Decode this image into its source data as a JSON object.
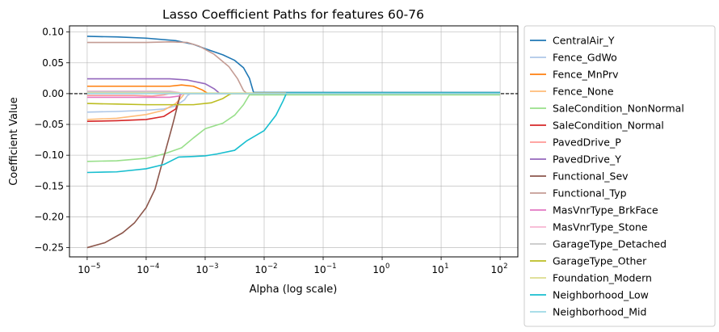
{
  "chart_data": {
    "type": "line",
    "title": "Lasso Coefficient Paths for features 60-76",
    "xlabel": "Alpha (log scale)",
    "ylabel": "Coefficient Value",
    "xscale": "log",
    "xlim_log10": [
      -5.3,
      2.3
    ],
    "ylim": [
      -0.265,
      0.11
    ],
    "xticks": [
      {
        "exp": -5,
        "label": "10",
        "sup": "−5"
      },
      {
        "exp": -4,
        "label": "10",
        "sup": "−4"
      },
      {
        "exp": -3,
        "label": "10",
        "sup": "−3"
      },
      {
        "exp": -2,
        "label": "10",
        "sup": "−2"
      },
      {
        "exp": -1,
        "label": "10",
        "sup": "−1"
      },
      {
        "exp": 0,
        "label": "10",
        "sup": "0"
      },
      {
        "exp": 1,
        "label": "10",
        "sup": "1"
      },
      {
        "exp": 2,
        "label": "10",
        "sup": "2"
      }
    ],
    "yticks": [
      {
        "v": 0.1,
        "label": "0.10"
      },
      {
        "v": 0.05,
        "label": "0.05"
      },
      {
        "v": 0.0,
        "label": "0.00"
      },
      {
        "v": -0.05,
        "label": "−0.05"
      },
      {
        "v": -0.1,
        "label": "−0.10"
      },
      {
        "v": -0.15,
        "label": "−0.15"
      },
      {
        "v": -0.2,
        "label": "−0.20"
      },
      {
        "v": -0.25,
        "label": "−0.25"
      }
    ],
    "grid": true,
    "zero_line": "dashed black",
    "legend_position": "outside-right",
    "series": [
      {
        "name": "CentralAir_Y",
        "color": "#1f77b4",
        "points": [
          [
            -5,
            0.093
          ],
          [
            -4.5,
            0.092
          ],
          [
            -4,
            0.09
          ],
          [
            -3.5,
            0.086
          ],
          [
            -3.2,
            0.08
          ],
          [
            -3,
            0.073
          ],
          [
            -2.7,
            0.063
          ],
          [
            -2.5,
            0.054
          ],
          [
            -2.35,
            0.042
          ],
          [
            -2.25,
            0.025
          ],
          [
            -2.18,
            0.002
          ],
          [
            2,
            0.002
          ]
        ]
      },
      {
        "name": "Fence_GdWo",
        "color": "#aec7e8",
        "points": [
          [
            -5,
            -0.03
          ],
          [
            -4.5,
            -0.029
          ],
          [
            -4,
            -0.027
          ],
          [
            -3.7,
            -0.025
          ],
          [
            -3.5,
            -0.02
          ],
          [
            -3.35,
            -0.01
          ],
          [
            -3.3,
            -0.003
          ],
          [
            -3.25,
            0.0
          ],
          [
            2,
            0.0
          ]
        ]
      },
      {
        "name": "Fence_MnPrv",
        "color": "#ff7f0e",
        "points": [
          [
            -5,
            0.012
          ],
          [
            -4,
            0.012
          ],
          [
            -3.6,
            0.012
          ],
          [
            -3.4,
            0.014
          ],
          [
            -3.2,
            0.012
          ],
          [
            -3.05,
            0.006
          ],
          [
            -2.95,
            0.0
          ],
          [
            2,
            0.0
          ]
        ]
      },
      {
        "name": "Fence_None",
        "color": "#ffbb78",
        "points": [
          [
            -5,
            -0.042
          ],
          [
            -4.5,
            -0.04
          ],
          [
            -4,
            -0.034
          ],
          [
            -3.7,
            -0.027
          ],
          [
            -3.5,
            -0.016
          ],
          [
            -3.4,
            -0.006
          ],
          [
            -3.35,
            0.0
          ],
          [
            2,
            0.0
          ]
        ]
      },
      {
        "name": "SaleCondition_NonNormal",
        "color": "#98df8a",
        "points": [
          [
            -5,
            -0.11
          ],
          [
            -4.5,
            -0.109
          ],
          [
            -4,
            -0.105
          ],
          [
            -3.7,
            -0.098
          ],
          [
            -3.4,
            -0.088
          ],
          [
            -3.2,
            -0.072
          ],
          [
            -3,
            -0.057
          ],
          [
            -2.7,
            -0.048
          ],
          [
            -2.5,
            -0.035
          ],
          [
            -2.35,
            -0.018
          ],
          [
            -2.25,
            -0.002
          ],
          [
            2,
            -0.002
          ]
        ]
      },
      {
        "name": "SaleCondition_Normal",
        "color": "#d62728",
        "points": [
          [
            -5,
            -0.045
          ],
          [
            -4.5,
            -0.044
          ],
          [
            -4,
            -0.042
          ],
          [
            -3.7,
            -0.037
          ],
          [
            -3.5,
            -0.025
          ],
          [
            -3.45,
            -0.012
          ],
          [
            -3.42,
            0.0
          ],
          [
            2,
            0.0
          ]
        ]
      },
      {
        "name": "PavedDrive_P",
        "color": "#ff9896",
        "points": [
          [
            -5,
            -0.003
          ],
          [
            -4.2,
            -0.003
          ],
          [
            -3.9,
            -0.004
          ],
          [
            -3.7,
            -0.002
          ],
          [
            -3.6,
            0.0
          ],
          [
            2,
            0.0
          ]
        ]
      },
      {
        "name": "PavedDrive_Y",
        "color": "#9467bd",
        "points": [
          [
            -5,
            0.024
          ],
          [
            -4,
            0.024
          ],
          [
            -3.6,
            0.024
          ],
          [
            -3.3,
            0.022
          ],
          [
            -3,
            0.016
          ],
          [
            -2.85,
            0.008
          ],
          [
            -2.75,
            0.0
          ],
          [
            2,
            0.0
          ]
        ]
      },
      {
        "name": "Functional_Sev",
        "color": "#8c564b",
        "points": [
          [
            -5,
            -0.25
          ],
          [
            -4.7,
            -0.242
          ],
          [
            -4.4,
            -0.226
          ],
          [
            -4.2,
            -0.21
          ],
          [
            -4,
            -0.185
          ],
          [
            -3.85,
            -0.155
          ],
          [
            -3.75,
            -0.12
          ],
          [
            -3.65,
            -0.085
          ],
          [
            -3.55,
            -0.05
          ],
          [
            -3.47,
            -0.02
          ],
          [
            -3.42,
            0.0
          ],
          [
            2,
            0.0
          ]
        ]
      },
      {
        "name": "Functional_Typ",
        "color": "#c49c94",
        "points": [
          [
            -5,
            0.083
          ],
          [
            -4.5,
            0.083
          ],
          [
            -4,
            0.083
          ],
          [
            -3.6,
            0.084
          ],
          [
            -3.3,
            0.083
          ],
          [
            -3.1,
            0.077
          ],
          [
            -2.85,
            0.064
          ],
          [
            -2.6,
            0.044
          ],
          [
            -2.45,
            0.024
          ],
          [
            -2.35,
            0.005
          ],
          [
            -2.3,
            0.001
          ],
          [
            2,
            0.001
          ]
        ]
      },
      {
        "name": "MasVnrType_BrkFace",
        "color": "#e377c2",
        "points": [
          [
            -5,
            -0.006
          ],
          [
            -4,
            -0.006
          ],
          [
            -3.6,
            -0.006
          ],
          [
            -3.45,
            -0.004
          ],
          [
            -3.38,
            0.0
          ],
          [
            2,
            0.0
          ]
        ]
      },
      {
        "name": "MasVnrType_Stone",
        "color": "#f7b6d2",
        "points": [
          [
            -5,
            0.004
          ],
          [
            -4,
            0.004
          ],
          [
            -3.6,
            0.004
          ],
          [
            -3.45,
            0.002
          ],
          [
            -3.4,
            0.0
          ],
          [
            2,
            0.0
          ]
        ]
      },
      {
        "name": "GarageType_Detached",
        "color": "#c7c7c7",
        "points": [
          [
            -5,
            0.003
          ],
          [
            -4,
            0.003
          ],
          [
            -3.6,
            0.003
          ],
          [
            -3.45,
            0.001
          ],
          [
            -3.4,
            0.0
          ],
          [
            2,
            0.0
          ]
        ]
      },
      {
        "name": "GarageType_Other",
        "color": "#bcbd22",
        "points": [
          [
            -5,
            -0.016
          ],
          [
            -4.5,
            -0.017
          ],
          [
            -4,
            -0.018
          ],
          [
            -3.6,
            -0.018
          ],
          [
            -3.2,
            -0.018
          ],
          [
            -2.9,
            -0.015
          ],
          [
            -2.7,
            -0.008
          ],
          [
            -2.6,
            -0.002
          ],
          [
            -2.55,
            0.0
          ],
          [
            2,
            0.0
          ]
        ]
      },
      {
        "name": "Foundation_Modern",
        "color": "#dbdb8d",
        "points": [
          [
            -5,
            0.001
          ],
          [
            2,
            0.001
          ]
        ]
      },
      {
        "name": "Neighborhood_Low",
        "color": "#17becf",
        "points": [
          [
            -5,
            -0.128
          ],
          [
            -4.5,
            -0.127
          ],
          [
            -4,
            -0.122
          ],
          [
            -3.7,
            -0.115
          ],
          [
            -3.45,
            -0.103
          ],
          [
            -3.2,
            -0.102
          ],
          [
            -3,
            -0.101
          ],
          [
            -2.8,
            -0.098
          ],
          [
            -2.5,
            -0.092
          ],
          [
            -2.3,
            -0.077
          ],
          [
            -2,
            -0.06
          ],
          [
            -1.8,
            -0.035
          ],
          [
            -1.68,
            -0.012
          ],
          [
            -1.62,
            0.001
          ],
          [
            2,
            0.001
          ]
        ]
      },
      {
        "name": "Neighborhood_Mid",
        "color": "#9edae5",
        "points": [
          [
            -5,
            0.0
          ],
          [
            2,
            0.0
          ]
        ]
      }
    ]
  }
}
